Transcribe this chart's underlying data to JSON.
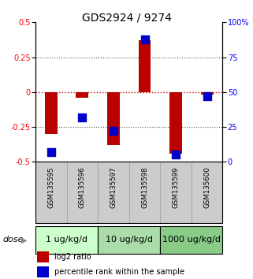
{
  "title": "GDS2924 / 9274",
  "samples": [
    "GSM135595",
    "GSM135596",
    "GSM135597",
    "GSM135598",
    "GSM135599",
    "GSM135600"
  ],
  "log2_ratio": [
    -0.3,
    -0.04,
    -0.38,
    0.37,
    -0.44,
    -0.02
  ],
  "percentile_rank": [
    7,
    32,
    22,
    88,
    5,
    47
  ],
  "dose_groups": [
    {
      "label": "1 ug/kg/d",
      "n_samples": 2,
      "color": "#ccffcc"
    },
    {
      "label": "10 ug/kg/d",
      "n_samples": 2,
      "color": "#aaddaa"
    },
    {
      "label": "1000 ug/kg/d",
      "n_samples": 2,
      "color": "#88cc88"
    }
  ],
  "ylim_left": [
    -0.5,
    0.5
  ],
  "ylim_right": [
    0,
    100
  ],
  "yticks_left": [
    -0.5,
    -0.25,
    0,
    0.25,
    0.5
  ],
  "yticks_right": [
    0,
    25,
    50,
    75,
    100
  ],
  "bar_color": "#bb0000",
  "dot_color": "#0000cc",
  "bar_width": 0.4,
  "dot_size": 55,
  "hline_zero_color": "#cc0000",
  "hline_dotted_color": "#555555",
  "legend_red_label": "log2 ratio",
  "legend_blue_label": "percentile rank within the sample",
  "dose_label": "dose",
  "sample_box_color": "#cccccc",
  "sample_box_edge": "#aaaaaa",
  "title_fontsize": 10,
  "tick_fontsize": 7,
  "label_fontsize": 7,
  "legend_fontsize": 7,
  "dose_fontsize": 8
}
